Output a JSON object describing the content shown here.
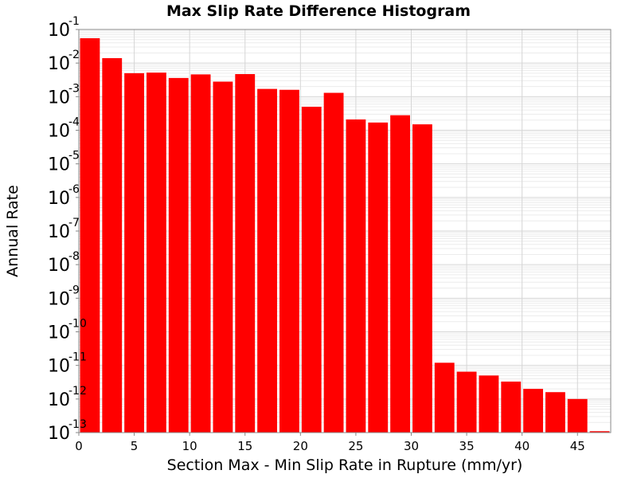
{
  "chart_data": {
    "type": "bar",
    "title": "Max Slip Rate Difference Histogram",
    "xlabel": "Section Max - Min Slip Rate in Rupture (mm/yr)",
    "ylabel": "Annual Rate",
    "xlim": [
      0,
      48
    ],
    "ylim": [
      1e-13,
      0.1
    ],
    "yscale": "log",
    "grid": true,
    "bar_color": "#ff0000",
    "bin_width": 2,
    "x_ticks": [
      "0",
      "5",
      "10",
      "15",
      "20",
      "25",
      "30",
      "35",
      "40",
      "45"
    ],
    "y_ticks": [
      {
        "base": "10",
        "exp": "-1"
      },
      {
        "base": "10",
        "exp": "-2"
      },
      {
        "base": "10",
        "exp": "-3"
      },
      {
        "base": "10",
        "exp": "-4"
      },
      {
        "base": "10",
        "exp": "-5"
      },
      {
        "base": "10",
        "exp": "-6"
      },
      {
        "base": "10",
        "exp": "-7"
      },
      {
        "base": "10",
        "exp": "-8"
      },
      {
        "base": "10",
        "exp": "-9"
      },
      {
        "base": "10",
        "exp": "-10"
      },
      {
        "base": "10",
        "exp": "-11"
      },
      {
        "base": "10",
        "exp": "-12"
      },
      {
        "base": "10",
        "exp": "-13"
      }
    ],
    "x": [
      1,
      3,
      5,
      7,
      9,
      11,
      13,
      15,
      17,
      19,
      21,
      23,
      25,
      27,
      29,
      31,
      33,
      35,
      37,
      39,
      41,
      43,
      45,
      47
    ],
    "values": [
      0.055,
      0.014,
      0.005,
      0.0052,
      0.0036,
      0.0046,
      0.0028,
      0.0047,
      0.0017,
      0.0016,
      0.0005,
      0.0013,
      0.00021,
      0.00017,
      0.00028,
      0.00015,
      1.2e-11,
      6.5e-12,
      5e-12,
      3.3e-12,
      2e-12,
      1.6e-12,
      1e-12,
      1.1e-13
    ]
  }
}
